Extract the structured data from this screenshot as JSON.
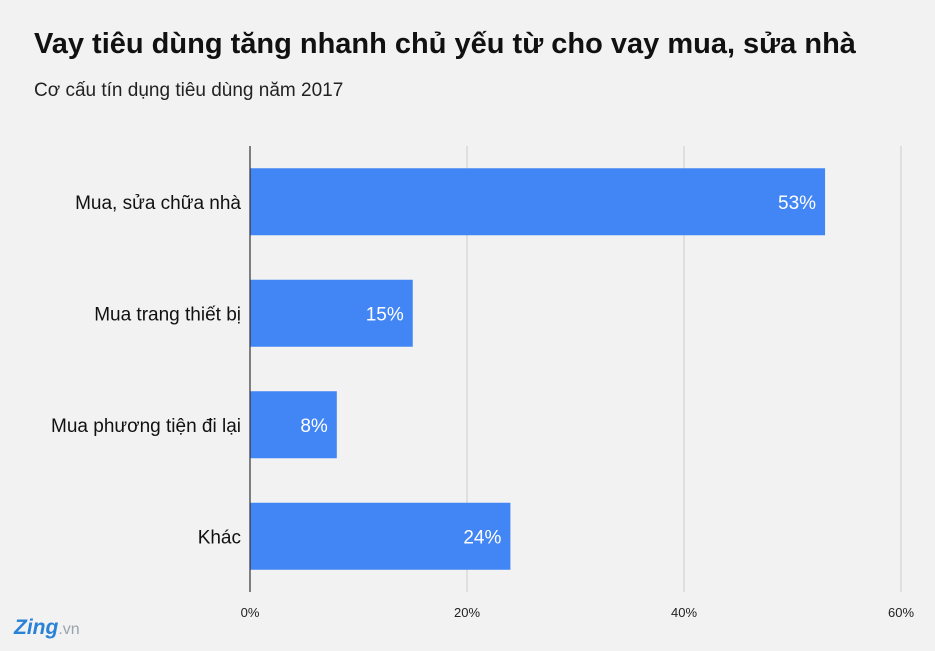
{
  "title": "Vay tiêu dùng tăng nhanh chủ yếu từ cho vay mua, sửa nhà",
  "subtitle": "Cơ cấu tín dụng tiêu dùng năm 2017",
  "logo": {
    "brand": "Zing",
    "suffix": ".vn"
  },
  "colors": {
    "bar": "#4285f4",
    "bar_label": "#ffffff",
    "grid": "#cccccc",
    "axis": "#333333",
    "background": "#f2f2f2"
  },
  "chart_data": {
    "type": "bar",
    "orientation": "horizontal",
    "categories": [
      "Mua, sửa chữa nhà",
      "Mua trang thiết bị",
      "Mua phương tiện đi lại",
      "Khác"
    ],
    "values": [
      53,
      15,
      8,
      24
    ],
    "value_labels": [
      "53%",
      "15%",
      "8%",
      "24%"
    ],
    "xlim": [
      0,
      60
    ],
    "x_ticks": [
      0,
      20,
      40,
      60
    ],
    "x_tick_labels": [
      "0%",
      "20%",
      "40%",
      "60%"
    ],
    "grid": true,
    "legend": "none"
  }
}
